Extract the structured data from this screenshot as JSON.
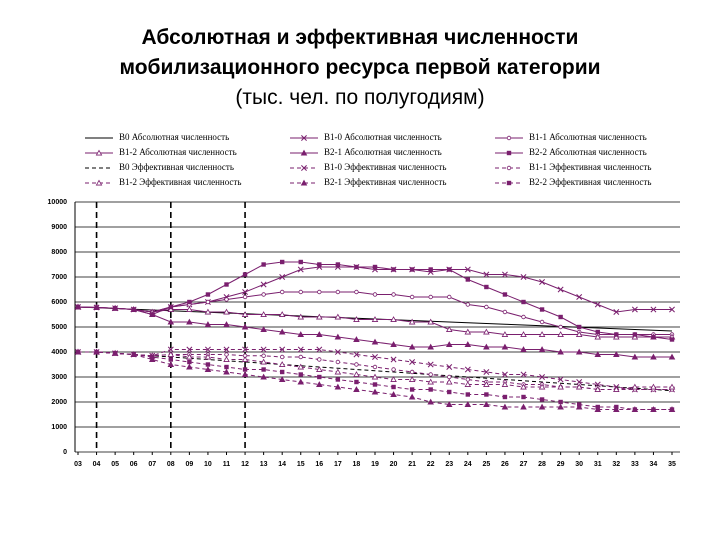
{
  "chart_data": {
    "type": "line",
    "title": [
      "Абсолютная и эффективная численности",
      "мобилизационного ресурса первой категории"
    ],
    "subtitle": "(тыс. чел. по полугодиям)",
    "categories": [
      "03",
      "04",
      "05",
      "06",
      "07",
      "08",
      "09",
      "10",
      "11",
      "12",
      "13",
      "14",
      "15",
      "16",
      "17",
      "18",
      "19",
      "20",
      "21",
      "22",
      "23",
      "24",
      "25",
      "26",
      "27",
      "28",
      "29",
      "30",
      "31",
      "32",
      "33",
      "34",
      "35"
    ],
    "ylim": [
      0,
      10000
    ],
    "yticks": [
      0,
      1000,
      2000,
      3000,
      4000,
      5000,
      6000,
      7000,
      8000,
      9000,
      10000
    ],
    "grid": true,
    "vlines": [
      "04",
      "08",
      "12"
    ],
    "series": [
      {
        "name": "В0 Абсолютная численность",
        "color": "#000000",
        "dash": false,
        "marker": "none",
        "values": [
          5800,
          5770,
          5740,
          5710,
          5680,
          5650,
          5620,
          5590,
          5560,
          5530,
          5500,
          5470,
          5440,
          5410,
          5380,
          5350,
          5320,
          5290,
          5260,
          5230,
          5200,
          5170,
          5140,
          5110,
          5080,
          5050,
          5020,
          4990,
          4960,
          4930,
          4900,
          4870,
          4840
        ]
      },
      {
        "name": "В1-0 Абсолютная численность",
        "color": "#7a1f6e",
        "dash": false,
        "marker": "x",
        "values": [
          5800,
          5780,
          5750,
          5700,
          5600,
          5800,
          5900,
          6000,
          6200,
          6400,
          6700,
          7000,
          7300,
          7400,
          7400,
          7400,
          7300,
          7300,
          7300,
          7200,
          7300,
          7300,
          7100,
          7100,
          7000,
          6800,
          6500,
          6200,
          5900,
          5600,
          5700,
          5700,
          5700
        ]
      },
      {
        "name": "В1-1 Абсолютная численность",
        "color": "#7a1f6e",
        "dash": false,
        "marker": "circle",
        "values": [
          5800,
          5780,
          5750,
          5700,
          5600,
          5800,
          5900,
          6000,
          6100,
          6200,
          6300,
          6400,
          6400,
          6400,
          6400,
          6400,
          6300,
          6300,
          6200,
          6200,
          6200,
          5900,
          5800,
          5600,
          5400,
          5200,
          5000,
          4800,
          4700,
          4700,
          4700,
          4700,
          4700
        ]
      },
      {
        "name": "В1-2 Абсолютная численность",
        "color": "#7a1f6e",
        "dash": false,
        "marker": "triangle-open",
        "values": [
          5800,
          5780,
          5750,
          5700,
          5600,
          5700,
          5700,
          5600,
          5600,
          5500,
          5500,
          5500,
          5400,
          5400,
          5400,
          5300,
          5300,
          5300,
          5200,
          5200,
          4900,
          4800,
          4800,
          4700,
          4700,
          4700,
          4700,
          4700,
          4600,
          4600,
          4600,
          4600,
          4600
        ]
      },
      {
        "name": "В2-1 Абсолютная численность",
        "color": "#7a1f6e",
        "dash": false,
        "marker": "triangle",
        "values": [
          5800,
          5780,
          5750,
          5700,
          5500,
          5200,
          5200,
          5100,
          5100,
          5000,
          4900,
          4800,
          4700,
          4700,
          4600,
          4500,
          4400,
          4300,
          4200,
          4200,
          4300,
          4300,
          4200,
          4200,
          4100,
          4100,
          4000,
          4000,
          3900,
          3900,
          3800,
          3800,
          3800
        ]
      },
      {
        "name": "В2-2 Абсолютная численность",
        "color": "#7a1f6e",
        "dash": false,
        "marker": "square",
        "values": [
          5800,
          5780,
          5750,
          5700,
          5500,
          5800,
          6000,
          6300,
          6700,
          7100,
          7500,
          7600,
          7600,
          7500,
          7500,
          7400,
          7400,
          7300,
          7300,
          7300,
          7300,
          6900,
          6600,
          6300,
          6000,
          5700,
          5400,
          5000,
          4800,
          4700,
          4700,
          4600,
          4500
        ]
      },
      {
        "name": "В0 Эффективная численность",
        "color": "#000000",
        "dash": true,
        "marker": "none",
        "values": [
          4000,
          4000,
          3950,
          3900,
          3850,
          3800,
          3750,
          3700,
          3650,
          3600,
          3550,
          3500,
          3450,
          3400,
          3350,
          3300,
          3250,
          3200,
          3150,
          3100,
          3050,
          3000,
          2950,
          2900,
          2850,
          2800,
          2750,
          2700,
          2650,
          2600,
          2550,
          2500,
          2450
        ]
      },
      {
        "name": "В1-0 Эффективная численность",
        "color": "#7a1f6e",
        "dash": true,
        "marker": "x",
        "values": [
          4000,
          4000,
          3950,
          3900,
          3850,
          4100,
          4100,
          4100,
          4100,
          4100,
          4100,
          4100,
          4100,
          4100,
          4000,
          3900,
          3800,
          3700,
          3600,
          3500,
          3400,
          3300,
          3200,
          3100,
          3100,
          3000,
          2900,
          2800,
          2700,
          2600,
          2500,
          2500,
          2500
        ]
      },
      {
        "name": "В1-1 Эффективная численность",
        "color": "#7a1f6e",
        "dash": true,
        "marker": "circle",
        "values": [
          4000,
          4000,
          3950,
          3900,
          3850,
          3900,
          3900,
          3900,
          3900,
          3850,
          3850,
          3800,
          3800,
          3700,
          3600,
          3500,
          3400,
          3300,
          3200,
          3100,
          3000,
          2900,
          2800,
          2800,
          2700,
          2700,
          2600,
          2600,
          2500,
          2500,
          2500,
          2500,
          2500
        ]
      },
      {
        "name": "В1-2 Эффективная численность",
        "color": "#7a1f6e",
        "dash": true,
        "marker": "triangle-open",
        "values": [
          4000,
          4000,
          3950,
          3900,
          3850,
          3900,
          3800,
          3800,
          3700,
          3700,
          3600,
          3500,
          3400,
          3300,
          3200,
          3100,
          3000,
          2900,
          2900,
          2800,
          2800,
          2700,
          2700,
          2700,
          2600,
          2600,
          2600,
          2600,
          2500,
          2500,
          2600,
          2600,
          2600
        ]
      },
      {
        "name": "В2-1 Эффективная численность",
        "color": "#7a1f6e",
        "dash": true,
        "marker": "triangle",
        "values": [
          4000,
          4000,
          3950,
          3900,
          3700,
          3500,
          3400,
          3300,
          3200,
          3100,
          3000,
          2900,
          2800,
          2700,
          2600,
          2500,
          2400,
          2300,
          2200,
          2000,
          1900,
          1900,
          1900,
          1800,
          1800,
          1800,
          1800,
          1800,
          1700,
          1700,
          1700,
          1700,
          1700
        ]
      },
      {
        "name": "В2-2 Эффективная численность",
        "color": "#7a1f6e",
        "dash": true,
        "marker": "square",
        "values": [
          4000,
          4000,
          3950,
          3900,
          3800,
          3700,
          3600,
          3500,
          3400,
          3300,
          3300,
          3200,
          3100,
          3000,
          2900,
          2800,
          2700,
          2600,
          2500,
          2500,
          2400,
          2300,
          2300,
          2200,
          2200,
          2100,
          2000,
          1900,
          1800,
          1800,
          1700,
          1700,
          1700
        ]
      }
    ]
  }
}
